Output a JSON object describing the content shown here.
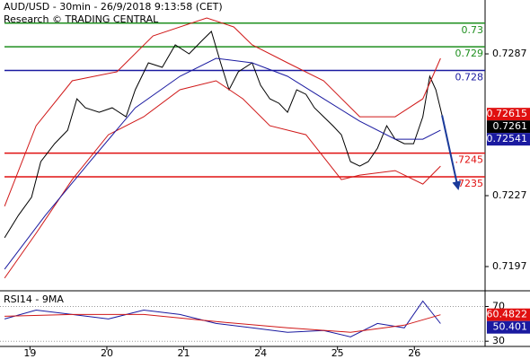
{
  "header": {
    "title": "AUD/USD - 30min - 26/9/2018 9:13:58 (CET)",
    "subtitle": "Research © TRADING CENTRAL"
  },
  "chart_data": [
    {
      "type": "line",
      "xlim": [
        -0.39,
        5.92
      ],
      "ylim": [
        0.71875,
        0.73098
      ],
      "yticks": [
        0.7197,
        0.7227,
        0.7287
      ],
      "levels": [
        {
          "value": 0.73,
          "label": "0.73",
          "color": "#1f8f1f"
        },
        {
          "value": 0.729,
          "label": "0.729",
          "color": "#1f8f1f"
        },
        {
          "value": 0.728,
          "label": "0.728",
          "color": "#1a1aa0"
        },
        {
          "value": 0.7245,
          "label": ".7245",
          "color": "#e01010"
        },
        {
          "value": 0.7235,
          "label": ".7235",
          "color": "#e01010"
        }
      ],
      "series": [
        {
          "color": "#000000",
          "x": [
            -0.33,
            -0.15,
            0.02,
            0.14,
            0.32,
            0.49,
            0.61,
            0.72,
            0.9,
            1.07,
            1.25,
            1.37,
            1.54,
            1.72,
            1.89,
            2.07,
            2.24,
            2.36,
            2.48,
            2.59,
            2.71,
            2.89,
            3.0,
            3.12,
            3.24,
            3.35,
            3.47,
            3.59,
            3.7,
            3.82,
            3.94,
            4.05,
            4.17,
            4.29,
            4.4,
            4.52,
            4.64,
            4.75,
            4.87,
            4.99,
            5.11,
            5.2,
            5.28,
            5.36
          ],
          "values": [
            0.72092,
            0.72187,
            0.72263,
            0.72414,
            0.7249,
            0.72547,
            0.7268,
            0.72642,
            0.72623,
            0.72642,
            0.72604,
            0.72718,
            0.72832,
            0.72813,
            0.72908,
            0.7287,
            0.72927,
            0.72965,
            0.72832,
            0.72718,
            0.72794,
            0.72832,
            0.72737,
            0.7268,
            0.72661,
            0.72623,
            0.72718,
            0.72699,
            0.72642,
            0.72604,
            0.72566,
            0.72528,
            0.72414,
            0.72395,
            0.72414,
            0.72471,
            0.72566,
            0.72509,
            0.7249,
            0.7249,
            0.72604,
            0.72775,
            0.72718,
            0.7261
          ]
        },
        {
          "color": "#d01818",
          "x": [
            -0.33,
            0.08,
            0.55,
            1.13,
            1.6,
            2.3,
            2.65,
            2.89,
            3.35,
            3.82,
            4.29,
            4.75,
            5.11,
            5.34
          ],
          "values": [
            0.72225,
            0.72566,
            0.72756,
            0.72794,
            0.72946,
            0.73022,
            0.72984,
            0.72908,
            0.72832,
            0.72756,
            0.72604,
            0.72604,
            0.7268,
            0.72851
          ]
        },
        {
          "color": "#d01818",
          "x": [
            -0.33,
            0.08,
            0.55,
            1.02,
            1.48,
            1.95,
            2.42,
            2.77,
            3.12,
            3.59,
            4.05,
            4.29,
            4.75,
            5.11,
            5.34
          ],
          "values": [
            0.71921,
            0.72111,
            0.72338,
            0.72528,
            0.72604,
            0.72718,
            0.72756,
            0.7268,
            0.72566,
            0.72528,
            0.72338,
            0.72357,
            0.72376,
            0.72319,
            0.72395
          ]
        },
        {
          "color": "#1a1aa0",
          "x": [
            -0.33,
            0.2,
            0.78,
            1.37,
            1.95,
            2.42,
            2.89,
            3.35,
            3.82,
            4.29,
            4.75,
            5.11,
            5.34
          ],
          "values": [
            0.71959,
            0.72187,
            0.72414,
            0.72642,
            0.72775,
            0.72851,
            0.72832,
            0.72775,
            0.7268,
            0.72585,
            0.72509,
            0.72509,
            0.72547
          ]
        }
      ],
      "projection": {
        "color": "#1a3a9a",
        "x": [
          5.36,
          5.57
        ],
        "values": [
          0.7261,
          0.723
        ]
      },
      "markers": [
        {
          "value": 0.72615,
          "label": "0.72615",
          "color": "#e01010"
        },
        {
          "value": 0.7261,
          "label": "0.7261",
          "color": "#000000"
        },
        {
          "value": 0.72541,
          "label": "0.72541",
          "color": "#1a1aa0"
        }
      ]
    },
    {
      "type": "line",
      "title": "RSI14 - 9MA",
      "xlim": [
        -0.39,
        5.92
      ],
      "ylim": [
        24,
        86
      ],
      "yticks": [
        70,
        30
      ],
      "xticks": [
        {
          "value": 0,
          "label": "19"
        },
        {
          "value": 1,
          "label": "20"
        },
        {
          "value": 2,
          "label": "21"
        },
        {
          "value": 3,
          "label": "24"
        },
        {
          "value": 4,
          "label": "25"
        },
        {
          "value": 5,
          "label": "26"
        }
      ],
      "series": [
        {
          "color": "#1a1aa0",
          "x": [
            -0.33,
            0.08,
            0.55,
            1.02,
            1.48,
            1.95,
            2.42,
            2.89,
            3.35,
            3.82,
            4.17,
            4.52,
            4.87,
            5.11,
            5.34
          ],
          "values": [
            55.6,
            65.9,
            60.8,
            55.6,
            65.9,
            60.8,
            50.5,
            45.4,
            40.3,
            42.3,
            35.1,
            50.5,
            45.4,
            76.2,
            50.401
          ]
        },
        {
          "color": "#d01818",
          "x": [
            -0.33,
            0.55,
            1.48,
            2.42,
            3.35,
            4.17,
            4.87,
            5.34
          ],
          "values": [
            58.7,
            60.8,
            60.8,
            52.6,
            45.4,
            40.3,
            48.5,
            60.4822
          ]
        }
      ],
      "markers": [
        {
          "value": 60.4822,
          "label": "60.4822",
          "color": "#e01010"
        },
        {
          "value": 50.401,
          "label": "50.401",
          "color": "#1a1aa0"
        }
      ]
    }
  ]
}
